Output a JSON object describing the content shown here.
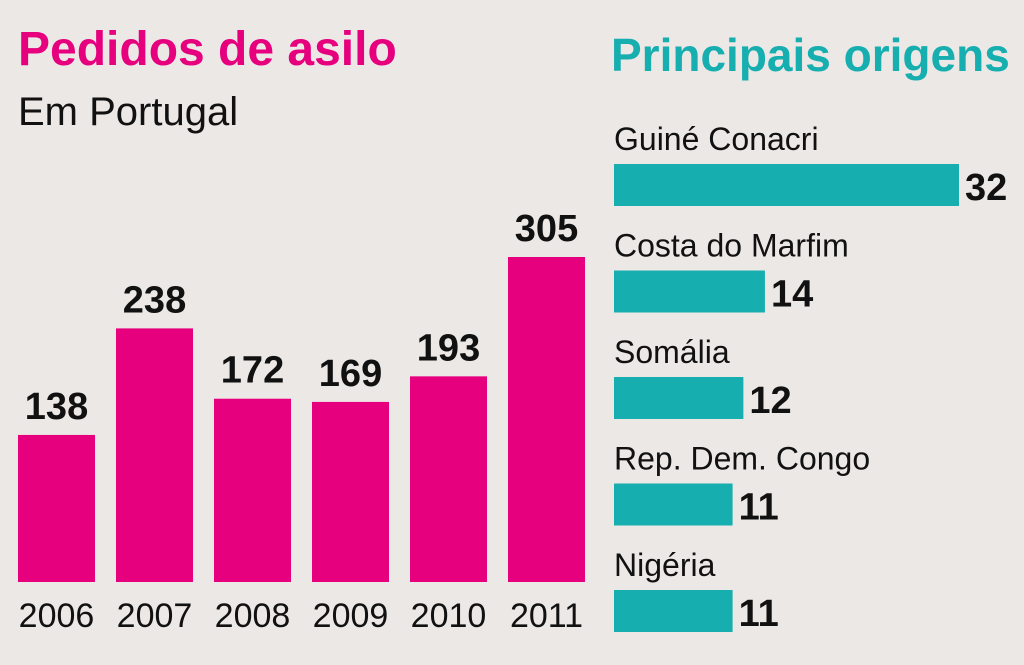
{
  "chart_data": [
    {
      "type": "bar",
      "title": "Pedidos de asilo",
      "subtitle": "Em Portugal",
      "categories": [
        "2006",
        "2007",
        "2008",
        "2009",
        "2010",
        "2011"
      ],
      "values": [
        138,
        238,
        172,
        169,
        193,
        305
      ],
      "data_labels": [
        "138",
        "238",
        "172",
        "169",
        "193",
        "305"
      ],
      "xlabel": "",
      "ylabel": "",
      "ylim": [
        0,
        305
      ],
      "grid": false,
      "legend": "none",
      "color": "#e6007e"
    },
    {
      "type": "bar",
      "orientation": "horizontal",
      "title": "Principais origens",
      "categories": [
        "Guiné Conacri",
        "Costa do Marfim",
        "Somália",
        "Rep. Dem. Congo",
        "Nigéria"
      ],
      "values": [
        32,
        14,
        12,
        11,
        11
      ],
      "data_labels": [
        "32",
        "14",
        "12",
        "11",
        "11"
      ],
      "xlabel": "",
      "ylabel": "",
      "xlim": [
        0,
        32
      ],
      "grid": false,
      "legend": "none",
      "color": "#17aeb0"
    }
  ],
  "colors": {
    "background": "#ece8e5",
    "accent_left": "#e6007e",
    "accent_right": "#17aeb0",
    "text": "#111111"
  }
}
